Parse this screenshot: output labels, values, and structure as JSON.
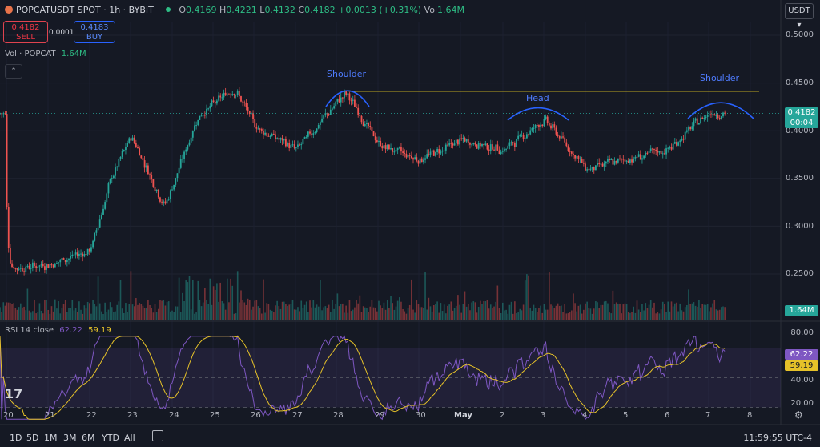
{
  "header": {
    "symbol": "POPCATUSDT SPOT · 1h · BYBIT",
    "o_label": "O",
    "o_value": "0.4169",
    "h_label": "H",
    "h_value": "0.4221",
    "l_label": "L",
    "l_value": "0.4132",
    "c_label": "C",
    "c_value": "0.4182",
    "change": "+0.0013 (+0.31%)",
    "vol_label": "Vol",
    "vol_value": "1.64M"
  },
  "trade": {
    "sell_price": "0.4182",
    "sell_label": "SELL",
    "spread": "0.0001",
    "buy_price": "0.4183",
    "buy_label": "BUY"
  },
  "volume_legend": {
    "label": "Vol · POPCAT",
    "value": "1.64M"
  },
  "currency_button": "USDT",
  "price_axis": [
    "0.5000",
    "0.4500",
    "0.4000",
    "0.3500",
    "0.3000",
    "0.2500"
  ],
  "current_price_tag": {
    "price": "0.4182",
    "countdown": "00:04"
  },
  "volume_tag": "1.64M",
  "rsi": {
    "label": "RSI 14 close",
    "rsi_value": "62.22",
    "ma_value": "59.19",
    "axis": [
      "80.00",
      "40.00",
      "20.00"
    ],
    "upper_band": 70,
    "lower_band": 30
  },
  "annotations": [
    "Shoulder",
    "Head",
    "Shoulder"
  ],
  "x_axis": [
    "20",
    "21",
    "22",
    "23",
    "24",
    "25",
    "26",
    "27",
    "28",
    "29",
    "30",
    "May",
    "2",
    "3",
    "4",
    "5",
    "6",
    "7",
    "8"
  ],
  "timeframes": [
    "1D",
    "5D",
    "1M",
    "3M",
    "6M",
    "YTD",
    "All"
  ],
  "clock": "11:59:55 UTC-4",
  "colors": {
    "up": "#26a69a",
    "down": "#ef5350",
    "rsi_line": "#7e57c2",
    "rsi_ma": "#e6c229",
    "neckline": "#f0d020",
    "annotation": "#2962ff"
  },
  "chart_data": {
    "type": "candlestick",
    "price_range": [
      0.22,
      0.51
    ],
    "key_price_points": [
      {
        "x": "20",
        "price": 0.255
      },
      {
        "x": "21",
        "price": 0.26
      },
      {
        "x": "22",
        "price": 0.275
      },
      {
        "x": "22.5",
        "price": 0.35
      },
      {
        "x": "23",
        "price": 0.395
      },
      {
        "x": "23.8",
        "price": 0.32
      },
      {
        "x": "24.6",
        "price": 0.415
      },
      {
        "x": "25.5",
        "price": 0.445
      },
      {
        "x": "26",
        "price": 0.405
      },
      {
        "x": "27",
        "price": 0.38
      },
      {
        "x": "28.2",
        "price": 0.44
      },
      {
        "x": "29",
        "price": 0.385
      },
      {
        "x": "30",
        "price": 0.37
      },
      {
        "x": "May",
        "price": 0.39
      },
      {
        "x": "2",
        "price": 0.38
      },
      {
        "x": "3",
        "price": 0.412
      },
      {
        "x": "4",
        "price": 0.36
      },
      {
        "x": "5",
        "price": 0.37
      },
      {
        "x": "6",
        "price": 0.38
      },
      {
        "x": "6.6",
        "price": 0.405
      },
      {
        "x": "7",
        "price": 0.42
      },
      {
        "x": "7.4",
        "price": 0.4182
      }
    ],
    "rsi_range": [
      20,
      80
    ]
  }
}
